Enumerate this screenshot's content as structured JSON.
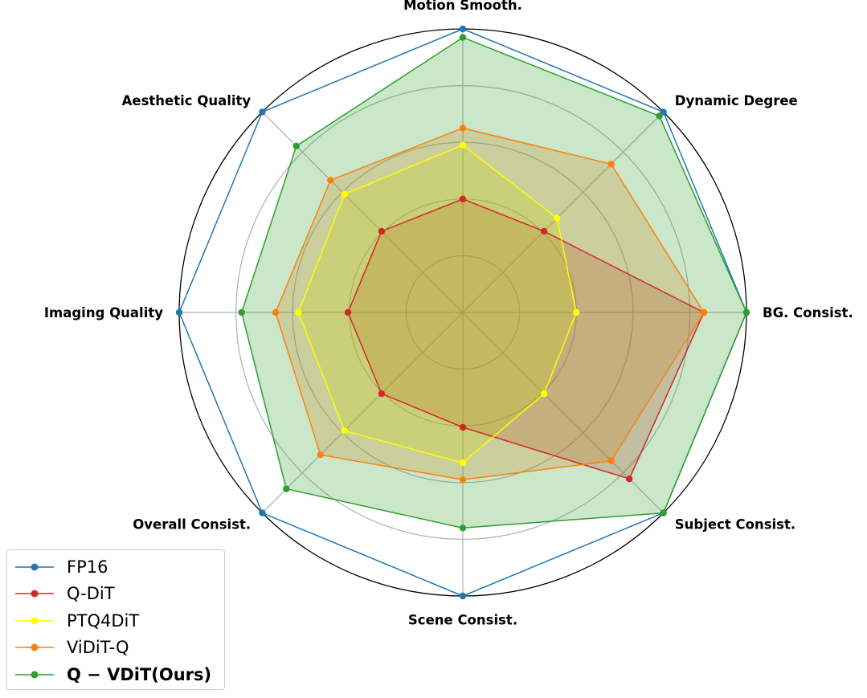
{
  "chart_data": {
    "type": "radar",
    "axes": [
      "BG. Consist.",
      "Dynamic Degree",
      "Motion Smooth.",
      "Aesthetic Quality",
      "Imaging Quality",
      "Overall Consist.",
      "Scene Consist.",
      "Subject Consist."
    ],
    "rlim": [
      0,
      1
    ],
    "grid": true,
    "legend_position": "lower-left",
    "series": [
      {
        "name": "FP16",
        "color": "#1f77b4",
        "fill": false,
        "bold": false,
        "values": [
          1.0,
          1.0,
          1.0,
          1.0,
          1.0,
          1.0,
          1.0,
          1.0
        ]
      },
      {
        "name": "Q-DiT",
        "color": "#d62728",
        "fill": true,
        "bold": false,
        "values": [
          0.85,
          0.405,
          0.4,
          0.405,
          0.405,
          0.405,
          0.405,
          0.83
        ]
      },
      {
        "name": "PTQ4DiT",
        "color": "#ffff00",
        "fill": true,
        "bold": false,
        "values": [
          0.4,
          0.47,
          0.59,
          0.59,
          0.58,
          0.59,
          0.53,
          0.405
        ]
      },
      {
        "name": "ViDiT-Q",
        "color": "#ff7f0e",
        "fill": true,
        "bold": false,
        "values": [
          0.85,
          0.74,
          0.65,
          0.66,
          0.66,
          0.71,
          0.59,
          0.74
        ]
      },
      {
        "name": "Q − VDiT(Ours)",
        "color": "#2ca02c",
        "fill": true,
        "bold": true,
        "values": [
          1.0,
          0.98,
          0.97,
          0.83,
          0.78,
          0.88,
          0.76,
          1.0
        ]
      }
    ]
  }
}
